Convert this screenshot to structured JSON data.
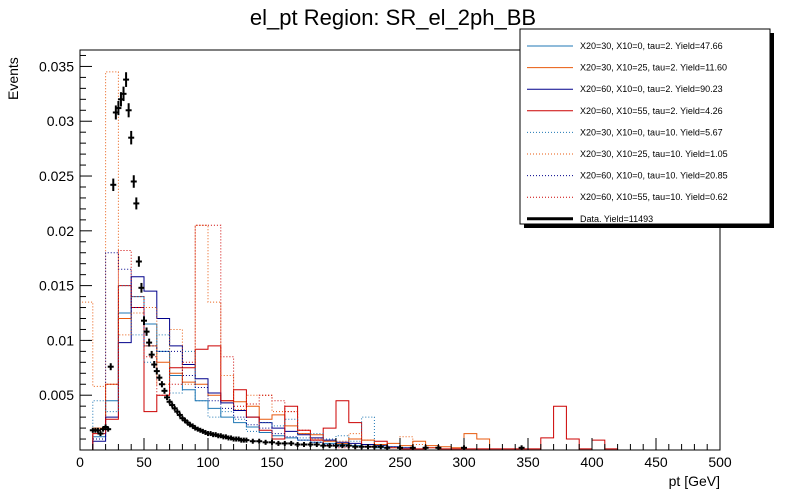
{
  "chart_data": {
    "type": "histogram",
    "title": "el_pt Region: SR_el_2ph_BB",
    "xlabel": "pt [GeV]",
    "ylabel": "Events",
    "xlim": [
      0,
      500
    ],
    "ylim": [
      0,
      0.0365
    ],
    "bin_width": 10,
    "x_ticks": [
      "0",
      "50",
      "100",
      "150",
      "200",
      "250",
      "300",
      "350",
      "400",
      "450",
      "500"
    ],
    "y_ticks": [
      "0.005",
      "0.01",
      "0.015",
      "0.02",
      "0.025",
      "0.03",
      "0.035"
    ],
    "legend_placement": "top-right",
    "series": [
      {
        "name": "X20=30, X10=0, tau=2. Yield=47.66",
        "color": "#1f77b4",
        "style": "solid",
        "bin_starts": [
          0,
          10,
          20,
          30,
          40,
          50,
          60,
          70,
          80,
          90,
          100,
          110,
          120,
          130,
          140,
          150,
          160,
          170,
          180,
          190,
          200,
          210,
          220,
          230
        ],
        "values": [
          0,
          0.0012,
          0.0045,
          0.0125,
          0.014,
          0.0115,
          0.009,
          0.0068,
          0.0055,
          0.0045,
          0.0038,
          0.003,
          0.0025,
          0.0021,
          0.0016,
          0.0013,
          0.0011,
          0.0009,
          0.0007,
          0.0006,
          0.0005,
          0.0004,
          0.0003,
          0.0002
        ]
      },
      {
        "name": "X20=30, X10=25, tau=2. Yield=11.60",
        "color": "#e8590c",
        "style": "solid",
        "bin_starts": [
          0,
          10,
          20,
          30,
          40,
          50,
          60,
          70,
          80,
          90,
          100,
          110,
          120,
          130,
          140,
          150,
          160,
          170,
          180,
          190,
          200,
          210,
          220,
          230,
          240,
          250,
          260,
          270,
          280,
          290,
          300,
          310
        ],
        "values": [
          0,
          0.002,
          0.006,
          0.012,
          0.013,
          0.0095,
          0.008,
          0.007,
          0.0062,
          0.006,
          0.005,
          0.0045,
          0.0044,
          0.004,
          0.0028,
          0.0032,
          0.0022,
          0.0015,
          0.0014,
          0.0008,
          0.0006,
          0.001,
          0.0009,
          0.0005,
          0.0006,
          0.0004,
          0.0008,
          0.0004,
          0.0003,
          0.0002,
          0.0015,
          0.001
        ]
      },
      {
        "name": "X20=60, X10=0, tau=2. Yield=90.23",
        "color": "#00008b",
        "style": "solid",
        "bin_starts": [
          0,
          10,
          20,
          30,
          40,
          50,
          60,
          70,
          80,
          90,
          100,
          110,
          120,
          130,
          140,
          150,
          160,
          170,
          180,
          190,
          200,
          210,
          220,
          230,
          240,
          250
        ],
        "values": [
          0,
          0.0008,
          0.003,
          0.0098,
          0.0158,
          0.0145,
          0.012,
          0.0095,
          0.0078,
          0.0065,
          0.0052,
          0.0043,
          0.0036,
          0.003,
          0.0025,
          0.002,
          0.0017,
          0.0014,
          0.0011,
          0.0009,
          0.0007,
          0.0006,
          0.0005,
          0.0004,
          0.0003,
          0.0002
        ]
      },
      {
        "name": "X20=60, X10=55, tau=2. Yield=4.26",
        "color": "#cc0000",
        "style": "solid",
        "bin_starts": [
          0,
          10,
          20,
          30,
          40,
          50,
          60,
          70,
          80,
          90,
          100,
          110,
          120,
          130,
          140,
          150,
          160,
          170,
          180,
          190,
          200,
          210,
          220,
          230,
          240,
          250,
          260,
          270,
          280,
          290,
          300,
          310,
          320,
          330,
          340,
          350,
          360,
          370,
          380,
          390,
          400,
          410
        ],
        "values": [
          0,
          0.0015,
          0.0028,
          0.015,
          0.013,
          0.0035,
          0.005,
          0.0075,
          0.0075,
          0.0092,
          0.0095,
          0.0045,
          0.0055,
          0.003,
          0.0018,
          0.001,
          0.004,
          0.0018,
          0.0009,
          0.002,
          0.0045,
          0.0025,
          0.0003,
          0.0008,
          0.0002,
          0.0001,
          0.0001,
          0.0002,
          0.0001,
          0.0001,
          0.0001,
          0.0001,
          0.0001,
          0.0001,
          0.0001,
          0.0001,
          0.0011,
          0.004,
          0.001,
          0.0001,
          0.0009,
          0.0001
        ]
      },
      {
        "name": "X20=30, X10=0, tau=10. Yield=5.67",
        "color": "#1f77b4",
        "style": "dotted",
        "bin_starts": [
          0,
          10,
          20,
          30,
          40,
          50,
          60,
          70,
          80,
          90,
          100,
          110,
          120,
          130,
          140,
          150,
          160,
          170,
          180,
          190,
          200,
          210,
          220,
          230,
          240,
          250
        ],
        "values": [
          0,
          0.0045,
          0.0035,
          0.015,
          0.0105,
          0.008,
          0.0105,
          0.0052,
          0.009,
          0.0045,
          0.003,
          0.0035,
          0.0028,
          0.0017,
          0.0025,
          0.0022,
          0.0028,
          0.0011,
          0.0015,
          0.001,
          0.0013,
          0.0008,
          0.003,
          0.0004,
          0.0003,
          0.0002
        ]
      },
      {
        "name": "X20=30, X10=25, tau=10. Yield=1.05",
        "color": "#e8590c",
        "style": "dotted",
        "bin_starts": [
          0,
          10,
          20,
          30,
          40,
          50,
          60,
          70,
          80,
          90,
          100,
          110,
          120,
          130,
          140,
          150,
          160,
          170,
          180,
          190,
          200,
          210,
          220,
          230,
          240,
          250,
          260,
          270
        ],
        "values": [
          0.0135,
          0.0058,
          0.0345,
          0.0105,
          0.0125,
          0.013,
          0.006,
          0.011,
          0.006,
          0.0205,
          0.0135,
          0.0068,
          0.0037,
          0.005,
          0.005,
          0.0035,
          0.0035,
          0.0015,
          0.001,
          0.0008,
          0.0008,
          0.0015,
          0.0009,
          0.0005,
          0.0002,
          0.0012,
          0.0005,
          0.0002
        ]
      },
      {
        "name": "X20=60, X10=0, tau=10. Yield=20.85",
        "color": "#00008b",
        "style": "dotted",
        "bin_starts": [
          0,
          10,
          20,
          30,
          40,
          50,
          60,
          70,
          80,
          90,
          100,
          110,
          120,
          130,
          140,
          150,
          160,
          170,
          180,
          190,
          200
        ],
        "values": [
          0,
          0.001,
          0.018,
          0.0165,
          0.013,
          0.0095,
          0.009,
          0.009,
          0.0068,
          0.0057,
          0.0045,
          0.0038,
          0.003,
          0.0023,
          0.002,
          0.0015,
          0.0012,
          0.0009,
          0.0007,
          0.0005,
          0.0003
        ]
      },
      {
        "name": "X20=60, X10=55, tau=10. Yield=0.62",
        "color": "#cc0000",
        "style": "dotted",
        "bin_starts": [
          0,
          10,
          20,
          30,
          40,
          50,
          60,
          70,
          80,
          90,
          100,
          110,
          120,
          130,
          140,
          150,
          160,
          170,
          180,
          190,
          200
        ],
        "values": [
          0,
          0.0018,
          0.006,
          0.0182,
          0.014,
          0.0085,
          0.005,
          0.006,
          0.008,
          0.0205,
          0.0205,
          0.0085,
          0.004,
          0.0042,
          0.005,
          0.0045,
          0.0035,
          0.0018,
          0.0009,
          0.0004,
          0.0002
        ]
      },
      {
        "name": "Data. Yield=11493",
        "color": "#000000",
        "style": "points",
        "x": [
          10,
          12,
          14,
          16,
          18,
          20,
          22,
          24,
          26,
          28,
          30,
          32,
          34,
          36,
          38,
          40,
          42,
          44,
          46,
          48,
          50,
          52,
          54,
          56,
          58,
          60,
          62,
          64,
          66,
          68,
          70,
          72,
          74,
          76,
          78,
          80,
          82,
          84,
          86,
          88,
          90,
          92,
          94,
          96,
          98,
          100,
          102,
          104,
          106,
          108,
          110,
          112,
          114,
          116,
          118,
          120,
          122,
          124,
          126,
          128,
          130,
          135,
          140,
          145,
          150,
          155,
          160,
          165,
          170,
          175,
          180,
          185,
          190,
          195,
          200,
          205,
          210,
          215,
          220,
          225,
          230,
          235,
          240,
          250,
          260,
          270,
          280,
          300,
          345
        ],
        "y": [
          0.0018,
          0.0018,
          0.0018,
          0.0015,
          0.0019,
          0.0021,
          0.0019,
          0.0076,
          0.0242,
          0.0308,
          0.0312,
          0.032,
          0.0325,
          0.0338,
          0.031,
          0.0285,
          0.0245,
          0.0225,
          0.0172,
          0.0148,
          0.0118,
          0.0108,
          0.0098,
          0.0087,
          0.0078,
          0.0072,
          0.0066,
          0.006,
          0.0054,
          0.0048,
          0.0044,
          0.0041,
          0.0038,
          0.0035,
          0.0032,
          0.0029,
          0.0027,
          0.0025,
          0.0023,
          0.0022,
          0.002,
          0.0019,
          0.0018,
          0.0017,
          0.0016,
          0.0015,
          0.0015,
          0.0014,
          0.0014,
          0.0013,
          0.0013,
          0.0012,
          0.0012,
          0.0011,
          0.0011,
          0.001,
          0.001,
          0.001,
          0.0009,
          0.0009,
          0.0009,
          0.0008,
          0.0008,
          0.0007,
          0.0007,
          0.0006,
          0.0006,
          0.0006,
          0.0005,
          0.0005,
          0.0005,
          0.0005,
          0.0004,
          0.0004,
          0.0004,
          0.0004,
          0.0004,
          0.0003,
          0.0003,
          0.0003,
          0.0003,
          0.0003,
          0.0002,
          0.0002,
          0.0002,
          0.0002,
          0.0002,
          0.0002,
          0.0002
        ]
      }
    ]
  }
}
